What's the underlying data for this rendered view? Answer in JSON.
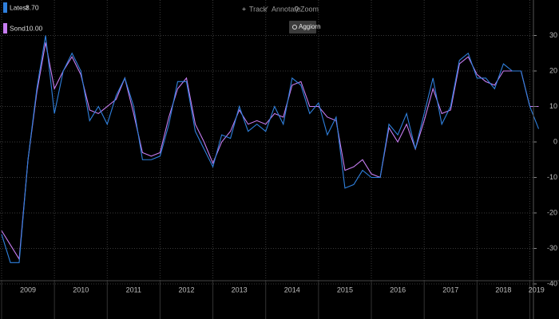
{
  "ui": {
    "track": "Track",
    "annotate": "Annotare",
    "zoom": "Zoom",
    "refresh": "Aggiorn"
  },
  "chart_data": {
    "type": "line",
    "x": [
      2009,
      2009.167,
      2009.333,
      2009.5,
      2009.667,
      2009.833,
      2010,
      2010.167,
      2010.333,
      2010.5,
      2010.667,
      2010.833,
      2011,
      2011.167,
      2011.333,
      2011.5,
      2011.667,
      2011.833,
      2012,
      2012.167,
      2012.333,
      2012.5,
      2012.667,
      2012.833,
      2013,
      2013.167,
      2013.333,
      2013.5,
      2013.667,
      2013.833,
      2014,
      2014.167,
      2014.333,
      2014.5,
      2014.667,
      2014.833,
      2015,
      2015.167,
      2015.333,
      2015.5,
      2015.667,
      2015.833,
      2016,
      2016.167,
      2016.333,
      2016.5,
      2016.667,
      2016.833,
      2017,
      2017.167,
      2017.333,
      2017.5,
      2017.667,
      2017.833,
      2018,
      2018.167,
      2018.333,
      2018.5,
      2018.667,
      2018.833,
      2019,
      2019.167
    ],
    "series": [
      {
        "name": "Latest",
        "value_label": "3.70",
        "color": "#2f80dd",
        "values": [
          -26,
          -34,
          -34,
          -5,
          15,
          30,
          8,
          20,
          25,
          20,
          6,
          10,
          5,
          13,
          18,
          10,
          -5,
          -5,
          -4,
          5,
          17,
          17,
          3,
          -2,
          -7,
          2,
          1,
          10,
          3,
          5,
          3,
          10,
          5,
          18,
          16,
          8,
          11,
          2,
          7,
          -13,
          -12,
          -8,
          -10,
          -10,
          5,
          2,
          8,
          -2,
          8,
          18,
          5,
          10,
          23,
          25,
          18,
          18,
          15,
          22,
          20,
          20,
          10,
          3.7
        ]
      },
      {
        "name": "Sond",
        "value_label": "10.00",
        "color": "#c77df2",
        "values": [
          -25,
          -29,
          -33,
          -5,
          14,
          28,
          15,
          20,
          24,
          19,
          9,
          8,
          10,
          12,
          18,
          8,
          -3,
          -4,
          -3,
          7,
          15,
          18,
          5,
          0,
          -6,
          0,
          3,
          9,
          5,
          6,
          5,
          8,
          7,
          16,
          17,
          10,
          10,
          7,
          6,
          -8,
          -7,
          -5,
          -9,
          -10,
          4,
          0,
          5,
          -2,
          6,
          15,
          8,
          9,
          22,
          24,
          19,
          17,
          16,
          20,
          20,
          20,
          10,
          10
        ]
      }
    ],
    "xlim": [
      2008.97,
      2019.25
    ],
    "xticks": [
      2009,
      2010,
      2011,
      2012,
      2013,
      2014,
      2015,
      2016,
      2017,
      2018,
      2019
    ],
    "ylim": [
      -40,
      40
    ],
    "yticks": [
      -40,
      -30,
      -20,
      -10,
      0,
      10,
      20,
      30
    ],
    "grid": true
  }
}
